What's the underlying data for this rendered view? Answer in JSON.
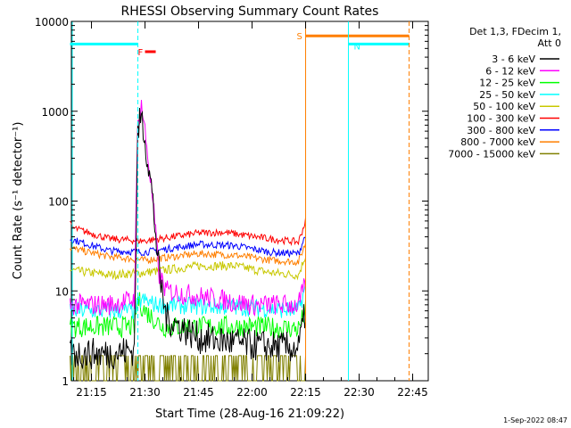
{
  "chart_data": {
    "type": "line",
    "title": "RHESSI Observing Summary Count Rates",
    "xlabel": "Start Time (28-Aug-16 21:09:22)",
    "ylabel": "Count Rate (s⁻¹ detector⁻¹)",
    "y_scale": "log",
    "ylim": [
      1,
      10000
    ],
    "y_ticks": [
      1,
      10,
      100,
      1000,
      10000
    ],
    "y_tick_labels": [
      "1",
      "10",
      "100",
      "1000",
      "10000"
    ],
    "x_range": [
      "21:09:22",
      "22:49:22"
    ],
    "x_ticks": [
      "21:15",
      "21:30",
      "21:45",
      "22:00",
      "22:15",
      "22:30",
      "22:45"
    ],
    "legend_header": [
      "Det 1,3, FDecim 1,",
      "Att 0"
    ],
    "legend_position": "right",
    "footer": "1-Sep-2022 08:47",
    "series": [
      {
        "name": "3 - 6 keV",
        "color": "#000000",
        "points": [
          [
            "21:09",
            2
          ],
          [
            "21:20",
            2
          ],
          [
            "21:27",
            2.2
          ],
          [
            "21:28",
            600
          ],
          [
            "21:29",
            900
          ],
          [
            "21:30",
            500
          ],
          [
            "21:32",
            120
          ],
          [
            "21:34",
            15
          ],
          [
            "21:36",
            5
          ],
          [
            "21:45",
            3
          ],
          [
            "22:00",
            2.5
          ],
          [
            "22:13",
            2.3
          ],
          [
            "22:15",
            6
          ]
        ]
      },
      {
        "name": "6 - 12 keV",
        "color": "#ff00ff",
        "points": [
          [
            "21:09",
            7
          ],
          [
            "21:20",
            7
          ],
          [
            "21:27",
            8
          ],
          [
            "21:28",
            700
          ],
          [
            "21:29",
            1200
          ],
          [
            "21:30",
            600
          ],
          [
            "21:32",
            120
          ],
          [
            "21:34",
            15
          ],
          [
            "21:36",
            10
          ],
          [
            "22:00",
            7
          ],
          [
            "22:13",
            7
          ],
          [
            "22:15",
            12
          ]
        ]
      },
      {
        "name": "12 - 25 keV",
        "color": "#00ff00",
        "points": [
          [
            "21:09",
            4
          ],
          [
            "21:27",
            4
          ],
          [
            "21:28",
            8
          ],
          [
            "21:30",
            6
          ],
          [
            "21:35",
            4
          ],
          [
            "22:00",
            4
          ],
          [
            "22:13",
            3.8
          ],
          [
            "22:15",
            6
          ]
        ]
      },
      {
        "name": "25 - 50 keV",
        "color": "#00ffff",
        "points": [
          [
            "21:09",
            6
          ],
          [
            "21:27",
            6
          ],
          [
            "21:29",
            8
          ],
          [
            "21:33",
            7
          ],
          [
            "22:00",
            6.5
          ],
          [
            "22:13",
            6
          ],
          [
            "22:15",
            11
          ]
        ]
      },
      {
        "name": "50 - 100 keV",
        "color": "#c8c800",
        "points": [
          [
            "21:09",
            17
          ],
          [
            "21:20",
            15
          ],
          [
            "21:30",
            16
          ],
          [
            "21:45",
            19
          ],
          [
            "21:55",
            19
          ],
          [
            "22:05",
            16
          ],
          [
            "22:13",
            15
          ],
          [
            "22:15",
            25
          ]
        ]
      },
      {
        "name": "100 - 300 keV",
        "color": "#ff0000",
        "points": [
          [
            "21:09",
            55
          ],
          [
            "21:10",
            50
          ],
          [
            "21:20",
            38
          ],
          [
            "21:30",
            36
          ],
          [
            "21:45",
            44
          ],
          [
            "21:52",
            45
          ],
          [
            "22:05",
            38
          ],
          [
            "22:13",
            35
          ],
          [
            "22:15",
            60
          ]
        ]
      },
      {
        "name": "300 - 800 keV",
        "color": "#0000ff",
        "points": [
          [
            "21:09",
            38
          ],
          [
            "21:20",
            28
          ],
          [
            "21:30",
            27
          ],
          [
            "21:45",
            33
          ],
          [
            "21:55",
            32
          ],
          [
            "22:05",
            27
          ],
          [
            "22:13",
            26
          ],
          [
            "22:15",
            42
          ]
        ]
      },
      {
        "name": "800 - 7000 keV",
        "color": "#ff7f00",
        "points": [
          [
            "21:09",
            30
          ],
          [
            "21:20",
            24
          ],
          [
            "21:30",
            22
          ],
          [
            "21:45",
            26
          ],
          [
            "21:55",
            25
          ],
          [
            "22:05",
            22
          ],
          [
            "22:13",
            21
          ],
          [
            "22:15",
            34
          ]
        ]
      },
      {
        "name": "7000 - 15000 keV",
        "color": "#808000",
        "points": [
          [
            "21:09",
            1.2
          ],
          [
            "22:15",
            1.2
          ]
        ]
      }
    ],
    "flags": [
      {
        "label": "N",
        "color": "#00ffff",
        "start": "21:09",
        "end": "21:28"
      },
      {
        "label": "N",
        "color": "#00ffff",
        "start": "22:27",
        "end": "22:44"
      },
      {
        "label": "F",
        "color": "#ff0000",
        "start": "21:30",
        "end": "21:33"
      },
      {
        "label": "S",
        "color": "#ff7f00",
        "start": "22:15",
        "end": "22:44"
      }
    ]
  }
}
